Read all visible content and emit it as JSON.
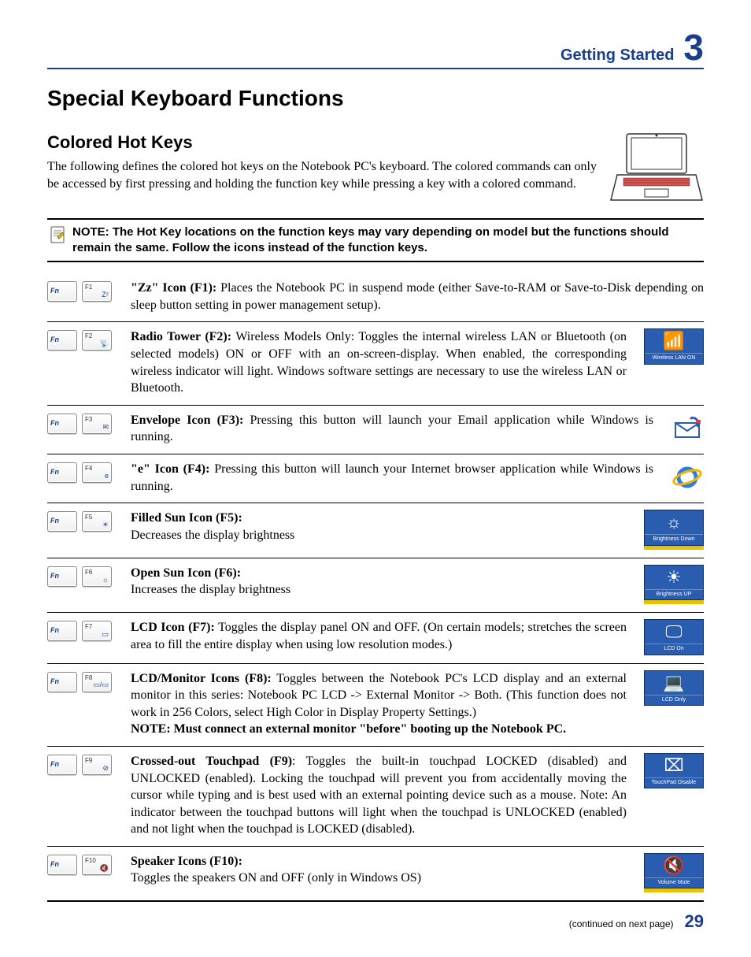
{
  "colors": {
    "brand_blue": "#1a3e8c",
    "osd_blue": "#2a5db0",
    "osd_blue_border": "#10306a",
    "osd_yellow": "#e8c400",
    "text": "#000000",
    "background": "#ffffff"
  },
  "typography": {
    "heading_font": "Arial, Helvetica, sans-serif",
    "body_font": "Times New Roman, Times, serif",
    "main_title_size_pt": 21,
    "sub_title_size_pt": 17,
    "body_size_pt": 12,
    "header_section_size_pt": 15,
    "header_chapter_size_pt": 35
  },
  "header": {
    "section_title": "Getting Started",
    "chapter_number": "3"
  },
  "main_title": "Special Keyboard Functions",
  "subsection_title": "Colored Hot Keys",
  "intro_paragraph": "The following defines the colored hot keys on the Notebook PC's keyboard. The colored commands can only be accessed by first pressing and holding the function key while pressing a key with a colored command.",
  "note_text": "NOTE: The Hot Key locations on the function keys may vary depending on model but the functions should remain the same. Follow the icons instead of the function keys.",
  "fn_key_label": "Fn",
  "hotkeys": [
    {
      "fkey": "F1",
      "glyph": "Zᶻ",
      "title": "\"Zz\" Icon (F1):",
      "body": " Places the Notebook PC in suspend mode (either Save-to-RAM or Save-to-Disk depending on sleep button setting in power management setup).",
      "osd": null,
      "app_icon": null
    },
    {
      "fkey": "F2",
      "glyph": "📡",
      "title": "Radio Tower (F2):",
      "body": " Wireless Models Only: Toggles the internal wireless LAN or Bluetooth (on selected models) ON or OFF with an on-screen-display. When enabled, the corresponding wireless indicator will light. Windows software settings are necessary to use the wireless LAN or Bluetooth.",
      "osd": {
        "glyph": "📶",
        "caption": "Wireless LAN ON",
        "yellow_bar": false
      },
      "app_icon": null
    },
    {
      "fkey": "F3",
      "glyph": "✉",
      "title": "Envelope Icon (F3):",
      "body": " Pressing this button will launch your Email application while Windows is running.",
      "osd": null,
      "app_icon": "email"
    },
    {
      "fkey": "F4",
      "glyph": "e",
      "title": "\"e\" Icon (F4):",
      "body": " Pressing this button will launch your Internet browser application while Windows is running.",
      "osd": null,
      "app_icon": "ie"
    },
    {
      "fkey": "F5",
      "glyph": "☀",
      "title": "Filled Sun Icon (F5):",
      "body": "\nDecreases the display brightness",
      "osd": {
        "glyph": "☼",
        "caption": "Brightness Down",
        "yellow_bar": true
      },
      "app_icon": null
    },
    {
      "fkey": "F6",
      "glyph": "☼",
      "title": "Open Sun Icon (F6):",
      "body": "\nIncreases the display brightness",
      "osd": {
        "glyph": "☀",
        "caption": "Brightness UP",
        "yellow_bar": true
      },
      "app_icon": null
    },
    {
      "fkey": "F7",
      "glyph": "▭",
      "title": "LCD Icon (F7):",
      "body": " Toggles the display panel ON and OFF. (On certain models; stretches the screen area to fill the entire display when using low resolution modes.)",
      "osd": {
        "glyph": "🖵",
        "caption": "LCD On",
        "yellow_bar": false
      },
      "app_icon": null
    },
    {
      "fkey": "F8",
      "glyph": "▭/▭",
      "title": "LCD/Monitor Icons (F8):",
      "body": " Toggles between the Notebook PC's LCD display and an external monitor in this series: Notebook PC LCD -> External Monitor -> Both. (This function does not work in 256 Colors, select High Color in Display Property Settings.)",
      "extra_note": "NOTE: Must connect an external monitor \"before\" booting up the Notebook PC.",
      "osd": {
        "glyph": "💻",
        "caption": "LCD Only",
        "yellow_bar": false
      },
      "app_icon": null
    },
    {
      "fkey": "F9",
      "glyph": "⊘",
      "title": "Crossed-out Touchpad (F9)",
      "body": ": Toggles the built-in touchpad LOCKED (disabled) and UNLOCKED (enabled). Locking the touchpad will prevent you from accidentally moving the cursor while typing and is best used with an external pointing device such as a mouse. Note: An indicator between the touchpad buttons will light when the touchpad is UNLOCKED (enabled) and not light when the touchpad is LOCKED (disabled).",
      "osd": {
        "glyph": "⌧",
        "caption": "TouchPad Disable",
        "yellow_bar": false
      },
      "app_icon": null
    },
    {
      "fkey": "F10",
      "glyph": "🔇",
      "title": "Speaker Icons (F10):",
      "body": "\nToggles the speakers ON and OFF (only in Windows OS)",
      "osd": {
        "glyph": "🔇",
        "caption": "Volume Mute",
        "yellow_bar": true
      },
      "app_icon": null
    }
  ],
  "footer": {
    "continued_text": "(continued on next page)",
    "page_number": "29"
  }
}
